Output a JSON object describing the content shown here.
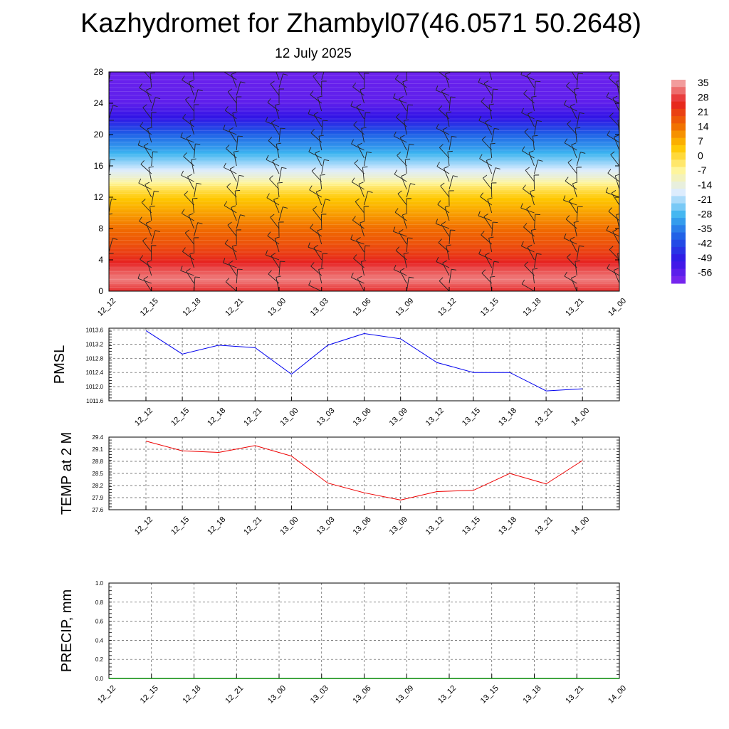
{
  "title": "Kazhydromet for Zhambyl07(46.0571 50.2648)",
  "subtitle": "12 July 2025",
  "colors": {
    "pmsl_line": "#0000ee",
    "temp_line": "#ee0000",
    "precip_line": "#008800",
    "grid": "#000000"
  },
  "chart_data": [
    {
      "type": "heatmap",
      "title": "",
      "xlabel": "",
      "ylabel": "",
      "x_tick_labels": [
        "12_12",
        "12_15",
        "12_18",
        "12_21",
        "13_00",
        "13_03",
        "13_06",
        "13_09",
        "13_12",
        "13_15",
        "13_18",
        "13_21",
        "14_00"
      ],
      "y_ticks": [
        0,
        4,
        8,
        12,
        16,
        20,
        24,
        28
      ],
      "ylim": [
        0,
        28
      ],
      "colorbar": {
        "labels": [
          "35",
          "28",
          "21",
          "14",
          "7",
          "0",
          "-7",
          "-14",
          "-21",
          "-28",
          "-35",
          "-42",
          "-49",
          "-56"
        ],
        "range": [
          -63,
          35
        ],
        "colors": [
          "#f4b4b4",
          "#e62020",
          "#f06a00",
          "#ffc800",
          "#fff59a",
          "#dcecff",
          "#3cb4f0",
          "#1e5ae6",
          "#3214e6",
          "#8228f0"
        ]
      },
      "temperature_levels": {
        "height": [
          0,
          1.5,
          3,
          4.5,
          6,
          8,
          10,
          12,
          13.5,
          14.5,
          16,
          18,
          20,
          22,
          24,
          28
        ],
        "value": [
          25,
          31,
          27,
          21,
          17,
          13,
          7,
          2,
          -6,
          -14,
          -22,
          -32,
          -40,
          -51,
          -58,
          -60
        ]
      },
      "wind_barbs": "barbs at every time step and levels 0-28"
    },
    {
      "type": "line",
      "ylabel": "PMSL",
      "x_tick_labels": [
        "12_12",
        "12_15",
        "12_18",
        "12_21",
        "13_00",
        "13_03",
        "13_06",
        "13_09",
        "13_12",
        "13_15",
        "13_18",
        "13_21",
        "14_00"
      ],
      "y_ticks": [
        "1011.6",
        "1012.0",
        "1012.4",
        "1012.8",
        "1013.2",
        "1013.6"
      ],
      "ylim": [
        1011.6,
        1013.65
      ],
      "grid": true,
      "series": [
        {
          "values": [
            1013.58,
            1012.92,
            1013.17,
            1013.1,
            1012.35,
            1013.17,
            1013.5,
            1013.35,
            1012.68,
            1012.4,
            1012.4,
            1011.88,
            1011.94
          ]
        }
      ]
    },
    {
      "type": "line",
      "ylabel": "TEMP at 2 M",
      "x_tick_labels": [
        "12_12",
        "12_15",
        "12_18",
        "12_21",
        "13_00",
        "13_03",
        "13_06",
        "13_09",
        "13_12",
        "13_15",
        "13_18",
        "13_21",
        "14_00"
      ],
      "y_ticks": [
        "27.6",
        "27.9",
        "28.2",
        "28.5",
        "28.8",
        "29.1",
        "29.4"
      ],
      "ylim": [
        27.6,
        29.4
      ],
      "grid": true,
      "series": [
        {
          "values": [
            29.3,
            29.06,
            29.02,
            29.19,
            28.93,
            28.26,
            28.02,
            27.84,
            28.05,
            28.08,
            28.5,
            28.24,
            28.82
          ]
        }
      ]
    },
    {
      "type": "line",
      "ylabel": "PRECIP, mm",
      "x_tick_labels": [
        "12_12",
        "12_15",
        "12_18",
        "12_21",
        "13_00",
        "13_03",
        "13_06",
        "13_09",
        "13_12",
        "13_15",
        "13_18",
        "13_21",
        "14_00"
      ],
      "y_ticks": [
        "0.0",
        "0.2",
        "0.4",
        "0.6",
        "0.8",
        "1.0"
      ],
      "ylim": [
        0,
        1
      ],
      "grid": true,
      "series": [
        {
          "values": [
            0,
            0,
            0,
            0,
            0,
            0,
            0,
            0,
            0,
            0,
            0,
            0,
            0
          ]
        }
      ]
    }
  ]
}
